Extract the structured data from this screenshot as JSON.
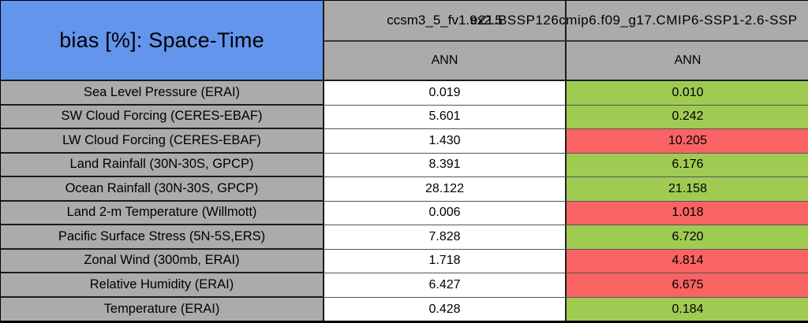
{
  "table": {
    "title": "bias [%]: Space-Time",
    "columns": [
      {
        "model": "ccsm3_5_fv1.9x2.5",
        "season": "ANN"
      },
      {
        "model": "e21.BSSP126cmip6.f09_g17.CMIP6-SSP1-2.6-SSP",
        "season": "ANN"
      }
    ],
    "rows": [
      {
        "label": "Sea Level Pressure (ERAI)",
        "values": [
          "0.019",
          "0.010"
        ],
        "cell_colors": [
          "white",
          "green"
        ]
      },
      {
        "label": "SW Cloud Forcing (CERES-EBAF)",
        "values": [
          "5.601",
          "0.242"
        ],
        "cell_colors": [
          "white",
          "green"
        ]
      },
      {
        "label": "LW Cloud Forcing (CERES-EBAF)",
        "values": [
          "1.430",
          "10.205"
        ],
        "cell_colors": [
          "white",
          "red"
        ]
      },
      {
        "label": "Land Rainfall (30N-30S, GPCP)",
        "values": [
          "8.391",
          "6.176"
        ],
        "cell_colors": [
          "white",
          "green"
        ]
      },
      {
        "label": "Ocean Rainfall (30N-30S, GPCP)",
        "values": [
          "28.122",
          "21.158"
        ],
        "cell_colors": [
          "white",
          "green"
        ]
      },
      {
        "label": "Land 2-m Temperature (Willmott)",
        "values": [
          "0.006",
          "1.018"
        ],
        "cell_colors": [
          "white",
          "red"
        ]
      },
      {
        "label": "Pacific Surface Stress (5N-5S,ERS)",
        "values": [
          "7.828",
          "6.720"
        ],
        "cell_colors": [
          "white",
          "green"
        ]
      },
      {
        "label": "Zonal Wind (300mb, ERAI)",
        "values": [
          "1.718",
          "4.814"
        ],
        "cell_colors": [
          "white",
          "red"
        ]
      },
      {
        "label": "Relative Humidity (ERAI)",
        "values": [
          "6.427",
          "6.675"
        ],
        "cell_colors": [
          "white",
          "red"
        ]
      },
      {
        "label": "Temperature (ERAI)",
        "values": [
          "0.428",
          "0.184"
        ],
        "cell_colors": [
          "white",
          "green"
        ]
      }
    ]
  },
  "colors": {
    "header_blue": "#6495ED",
    "label_gray": "#ABABAB",
    "green": "#9FCB53",
    "red": "#FA6363",
    "white": "#FFFFFF"
  },
  "chart_data": {
    "type": "table",
    "title": "bias [%]: Space-Time",
    "categories": [
      "Sea Level Pressure (ERAI)",
      "SW Cloud Forcing (CERES-EBAF)",
      "LW Cloud Forcing (CERES-EBAF)",
      "Land Rainfall (30N-30S, GPCP)",
      "Ocean Rainfall (30N-30S, GPCP)",
      "Land 2-m Temperature (Willmott)",
      "Pacific Surface Stress (5N-5S,ERS)",
      "Zonal Wind (300mb, ERAI)",
      "Relative Humidity (ERAI)",
      "Temperature (ERAI)"
    ],
    "series": [
      {
        "name": "ccsm3_5_fv1.9x2.5 ANN",
        "values": [
          0.019,
          5.601,
          1.43,
          8.391,
          28.122,
          0.006,
          7.828,
          1.718,
          6.427,
          0.428
        ]
      },
      {
        "name": "e21.BSSP126cmip6.f09_g17.CMIP6-SSP1-2.6-SSP ANN",
        "values": [
          0.01,
          0.242,
          10.205,
          6.176,
          21.158,
          1.018,
          6.72,
          4.814,
          6.675,
          0.184
        ]
      }
    ],
    "column2_highlight": [
      "green",
      "green",
      "red",
      "green",
      "green",
      "red",
      "green",
      "red",
      "red",
      "green"
    ],
    "legend_position": "none",
    "grid": true
  }
}
